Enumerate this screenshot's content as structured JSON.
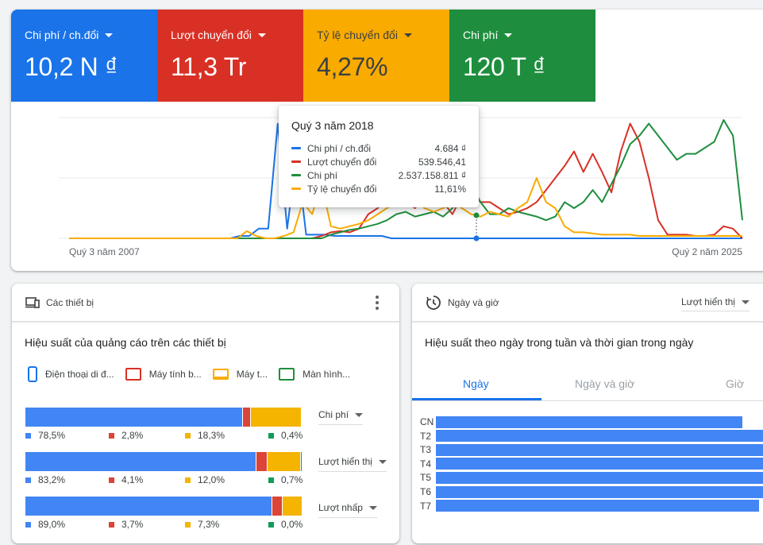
{
  "metrics": [
    {
      "label": "Chi phí / ch.đổi",
      "value": "10,2 N ₫",
      "color": "#1a73e8"
    },
    {
      "label": "Lượt chuyển đổi",
      "value": "11,3 Tr",
      "color": "#d93025"
    },
    {
      "label": "Tỷ lệ chuyển đổi",
      "value": "4,27%",
      "color": "#f9ab00"
    },
    {
      "label": "Chi phí",
      "value": "120 T ₫",
      "color": "#1e8e3e"
    }
  ],
  "chart_data": {
    "type": "line",
    "x_start_label": "Quý 3 năm 2007",
    "x_end_label": "Quý 2 năm 2025",
    "y_scale": "normalized per series (no visible y axis)",
    "ylim": [
      0,
      1
    ],
    "grid": true,
    "series": [
      {
        "name": "Chi phí / ch.đổi",
        "color": "#1a73e8",
        "values": [
          0,
          0,
          0,
          0,
          0,
          0,
          0,
          0,
          0,
          0,
          0,
          0,
          0,
          0,
          0,
          0,
          0,
          0,
          0.02,
          0.02,
          0.08,
          0.08,
          0.95,
          0.08,
          0.7,
          0.03,
          0.03,
          0.03,
          0.02,
          0.02,
          0.02,
          0.02,
          0.02,
          0.02,
          0,
          0,
          0,
          0,
          0,
          0,
          0,
          0,
          0,
          0,
          0,
          0,
          0,
          0,
          0,
          0,
          0,
          0,
          0,
          0,
          0,
          0,
          0,
          0,
          0,
          0,
          0,
          0,
          0,
          0,
          0,
          0,
          0,
          0,
          0,
          0,
          0,
          0
        ]
      },
      {
        "name": "Lượt chuyển đổi",
        "color": "#d93025",
        "values": [
          0,
          0,
          0,
          0,
          0,
          0,
          0,
          0,
          0,
          0,
          0,
          0,
          0,
          0,
          0,
          0,
          0,
          0,
          0,
          0,
          0,
          0,
          0,
          0,
          0,
          0,
          0,
          0.02,
          0.05,
          0.06,
          0.05,
          0.08,
          0.2,
          0.25,
          0.35,
          0.42,
          0.3,
          0.25,
          0.35,
          0.48,
          0.3,
          0.2,
          0.35,
          0.4,
          0.3,
          0.3,
          0.25,
          0.2,
          0.22,
          0.25,
          0.3,
          0.4,
          0.5,
          0.6,
          0.72,
          0.55,
          0.7,
          0.55,
          0.38,
          0.72,
          0.95,
          0.8,
          0.5,
          0.15,
          0.03,
          0.03,
          0.03,
          0.02,
          0.02,
          0.03,
          0.1,
          0.08,
          0
        ]
      },
      {
        "name": "Chi phí",
        "color": "#1e8e3e",
        "values": [
          0,
          0,
          0,
          0,
          0,
          0,
          0,
          0,
          0,
          0,
          0,
          0,
          0,
          0,
          0,
          0,
          0,
          0,
          0,
          0,
          0,
          0,
          0,
          0,
          0,
          0,
          0,
          0,
          0.03,
          0.05,
          0.07,
          0.08,
          0.1,
          0.12,
          0.15,
          0.2,
          0.22,
          0.18,
          0.2,
          0.22,
          0.18,
          0.25,
          0.35,
          0.45,
          0.3,
          0.2,
          0.2,
          0.25,
          0.22,
          0.2,
          0.18,
          0.15,
          0.18,
          0.3,
          0.25,
          0.3,
          0.4,
          0.3,
          0.45,
          0.6,
          0.78,
          0.85,
          0.95,
          0.85,
          0.75,
          0.65,
          0.7,
          0.7,
          0.75,
          0.8,
          0.98,
          0.85,
          0.15
        ]
      },
      {
        "name": "Tỷ lệ chuyển đổi",
        "color": "#f9ab00",
        "values": [
          0,
          0,
          0,
          0,
          0,
          0,
          0,
          0,
          0,
          0,
          0,
          0,
          0,
          0,
          0,
          0,
          0,
          0,
          0,
          0.06,
          0.02,
          0,
          0,
          0.02,
          0.05,
          0.3,
          0.2,
          0.45,
          0.1,
          0.08,
          0.1,
          0.12,
          0.15,
          0.2,
          0.25,
          0.3,
          0.28,
          0.32,
          0.25,
          0.22,
          0.25,
          0.3,
          0.25,
          0.2,
          0.18,
          0.22,
          0.2,
          0.18,
          0.25,
          0.3,
          0.5,
          0.3,
          0.25,
          0.1,
          0.05,
          0.05,
          0.04,
          0.03,
          0.03,
          0.03,
          0.03,
          0.02,
          0.02,
          0.02,
          0.02,
          0.02,
          0.02,
          0.02,
          0.02,
          0.02,
          0.02,
          0.02,
          0.02
        ]
      }
    ],
    "tooltip": {
      "title": "Quý 3 năm 2018",
      "rows": [
        {
          "name": "Chi phí / ch.đổi",
          "value": "4.684 ₫",
          "color": "#1a73e8"
        },
        {
          "name": "Lượt chuyển đổi",
          "value": "539.546,41",
          "color": "#d93025"
        },
        {
          "name": "Chi phí",
          "value": "2.537.158.811 ₫",
          "color": "#1e8e3e"
        },
        {
          "name": "Tỷ lệ chuyển đổi",
          "value": "11,61%",
          "color": "#f9ab00"
        }
      ]
    }
  },
  "devices": {
    "header_title": "Các thiết bị",
    "subtitle": "Hiệu suất của quảng cáo trên các thiết bị",
    "legend": [
      {
        "label": "Điện thoại di đ...",
        "color": "#1a73e8",
        "icon": "mobile-icon"
      },
      {
        "label": "Máy tính b...",
        "color": "#d93025",
        "icon": "tablet-icon"
      },
      {
        "label": "Máy t...",
        "color": "#f9ab00",
        "icon": "laptop-icon"
      },
      {
        "label": "Màn hình...",
        "color": "#1e8e3e",
        "icon": "tv-icon"
      }
    ],
    "rows": [
      {
        "metric": "Chi phí",
        "values": [
          78.5,
          2.8,
          18.3,
          0.4
        ],
        "labels": [
          "78,5%",
          "2,8%",
          "18,3%",
          "0,4%"
        ]
      },
      {
        "metric": "Lượt hiển thị",
        "values": [
          83.2,
          4.1,
          12.0,
          0.7
        ],
        "labels": [
          "83,2%",
          "4,1%",
          "12,0%",
          "0,7%"
        ]
      },
      {
        "metric": "Lượt nhấp",
        "values": [
          89.0,
          3.7,
          7.3,
          0.0
        ],
        "labels": [
          "89,0%",
          "3,7%",
          "7,3%",
          "0,0%"
        ]
      }
    ],
    "colors": [
      "#4285f4",
      "#db4437",
      "#f4b400",
      "#0f9d58"
    ]
  },
  "daytime": {
    "header_title": "Ngày và giờ",
    "dropdown": "Lượt hiển thị",
    "subtitle": "Hiệu suất theo ngày trong tuần và thời gian trong ngày",
    "tabs": [
      "Ngày",
      "Ngày và giờ",
      "Giờ"
    ],
    "active_tab": 0,
    "days": [
      {
        "label": "CN",
        "value": 0.92
      },
      {
        "label": "T2",
        "value": 1.0
      },
      {
        "label": "T3",
        "value": 0.99
      },
      {
        "label": "T4",
        "value": 0.99
      },
      {
        "label": "T5",
        "value": 0.99
      },
      {
        "label": "T6",
        "value": 0.98
      },
      {
        "label": "T7",
        "value": 0.97
      }
    ]
  }
}
